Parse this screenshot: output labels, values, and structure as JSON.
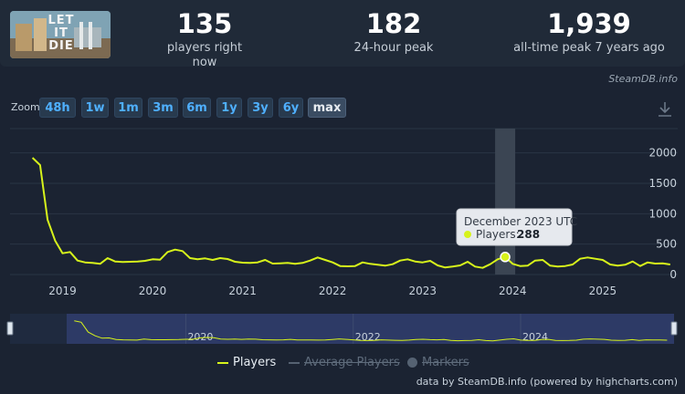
{
  "game": {
    "logo_text": "LET IT DIE"
  },
  "stats": [
    {
      "value": "135",
      "label": "players right now"
    },
    {
      "value": "182",
      "label": "24-hour peak"
    },
    {
      "value": "1,939",
      "label": "all-time peak 7 years ago"
    }
  ],
  "credit_top": "SteamDB.info",
  "zoom": {
    "label": "Zoom",
    "buttons": [
      "48h",
      "1w",
      "1m",
      "3m",
      "6m",
      "1y",
      "3y",
      "6y",
      "max"
    ],
    "active": "max"
  },
  "tooltip": {
    "title": "December 2023 UTC",
    "series_label": "Players:",
    "value": "288"
  },
  "legend": [
    {
      "label": "Players",
      "state": "active"
    },
    {
      "label": "Average Players",
      "state": "hidden"
    },
    {
      "label": "Markers",
      "state": "hidden"
    }
  ],
  "credit_bottom": "data by SteamDB.info (powered by highcharts.com)",
  "colors": {
    "players_line": "#d7f31b",
    "highlight_band": "#3b4553",
    "navigator_bg": "#2d3a66"
  },
  "chart_data": {
    "type": "line",
    "series": [
      {
        "name": "Players",
        "points": [
          [
            "2018-09",
            1920
          ],
          [
            "2018-10",
            1800
          ],
          [
            "2018-11",
            900
          ],
          [
            "2018-12",
            560
          ],
          [
            "2019-01",
            350
          ],
          [
            "2019-02",
            370
          ],
          [
            "2019-03",
            230
          ],
          [
            "2019-04",
            200
          ],
          [
            "2019-05",
            190
          ],
          [
            "2019-06",
            175
          ],
          [
            "2019-07",
            270
          ],
          [
            "2019-08",
            215
          ],
          [
            "2019-09",
            205
          ],
          [
            "2019-10",
            210
          ],
          [
            "2019-11",
            215
          ],
          [
            "2019-12",
            225
          ],
          [
            "2020-01",
            250
          ],
          [
            "2020-02",
            245
          ],
          [
            "2020-03",
            370
          ],
          [
            "2020-04",
            410
          ],
          [
            "2020-05",
            385
          ],
          [
            "2020-06",
            270
          ],
          [
            "2020-07",
            250
          ],
          [
            "2020-08",
            265
          ],
          [
            "2020-09",
            240
          ],
          [
            "2020-10",
            270
          ],
          [
            "2020-11",
            255
          ],
          [
            "2020-12",
            210
          ],
          [
            "2021-01",
            195
          ],
          [
            "2021-02",
            190
          ],
          [
            "2021-03",
            200
          ],
          [
            "2021-04",
            240
          ],
          [
            "2021-05",
            180
          ],
          [
            "2021-06",
            185
          ],
          [
            "2021-07",
            190
          ],
          [
            "2021-08",
            175
          ],
          [
            "2021-09",
            190
          ],
          [
            "2021-10",
            230
          ],
          [
            "2021-11",
            280
          ],
          [
            "2021-12",
            240
          ],
          [
            "2022-01",
            200
          ],
          [
            "2022-02",
            140
          ],
          [
            "2022-03",
            135
          ],
          [
            "2022-04",
            140
          ],
          [
            "2022-05",
            200
          ],
          [
            "2022-06",
            175
          ],
          [
            "2022-07",
            160
          ],
          [
            "2022-08",
            145
          ],
          [
            "2022-09",
            170
          ],
          [
            "2022-10",
            230
          ],
          [
            "2022-11",
            250
          ],
          [
            "2022-12",
            215
          ],
          [
            "2023-01",
            200
          ],
          [
            "2023-02",
            225
          ],
          [
            "2023-03",
            150
          ],
          [
            "2023-04",
            115
          ],
          [
            "2023-05",
            130
          ],
          [
            "2023-06",
            150
          ],
          [
            "2023-07",
            210
          ],
          [
            "2023-08",
            130
          ],
          [
            "2023-09",
            110
          ],
          [
            "2023-10",
            170
          ],
          [
            "2023-11",
            250
          ],
          [
            "2023-12",
            288
          ],
          [
            "2024-01",
            175
          ],
          [
            "2024-02",
            140
          ],
          [
            "2024-03",
            145
          ],
          [
            "2024-04",
            230
          ],
          [
            "2024-05",
            240
          ],
          [
            "2024-06",
            145
          ],
          [
            "2024-07",
            130
          ],
          [
            "2024-08",
            140
          ],
          [
            "2024-09",
            165
          ],
          [
            "2024-10",
            260
          ],
          [
            "2024-11",
            280
          ],
          [
            "2024-12",
            260
          ],
          [
            "2025-01",
            240
          ],
          [
            "2025-02",
            165
          ],
          [
            "2025-03",
            145
          ],
          [
            "2025-04",
            160
          ],
          [
            "2025-05",
            215
          ],
          [
            "2025-06",
            140
          ],
          [
            "2025-07",
            200
          ],
          [
            "2025-08",
            180
          ],
          [
            "2025-09",
            185
          ],
          [
            "2025-10",
            165
          ]
        ]
      }
    ],
    "highlight": {
      "x": "2023-12",
      "y": 288
    },
    "x_ticks": [
      "2019",
      "2020",
      "2021",
      "2022",
      "2023",
      "2024",
      "2025"
    ],
    "y_ticks": [
      0,
      500,
      1000,
      1500,
      2000
    ],
    "ylim": [
      0,
      2400
    ],
    "navigator_labels": [
      "2020",
      "2022",
      "2024"
    ],
    "grid": "horizontal",
    "legend_position": "bottom-center"
  }
}
